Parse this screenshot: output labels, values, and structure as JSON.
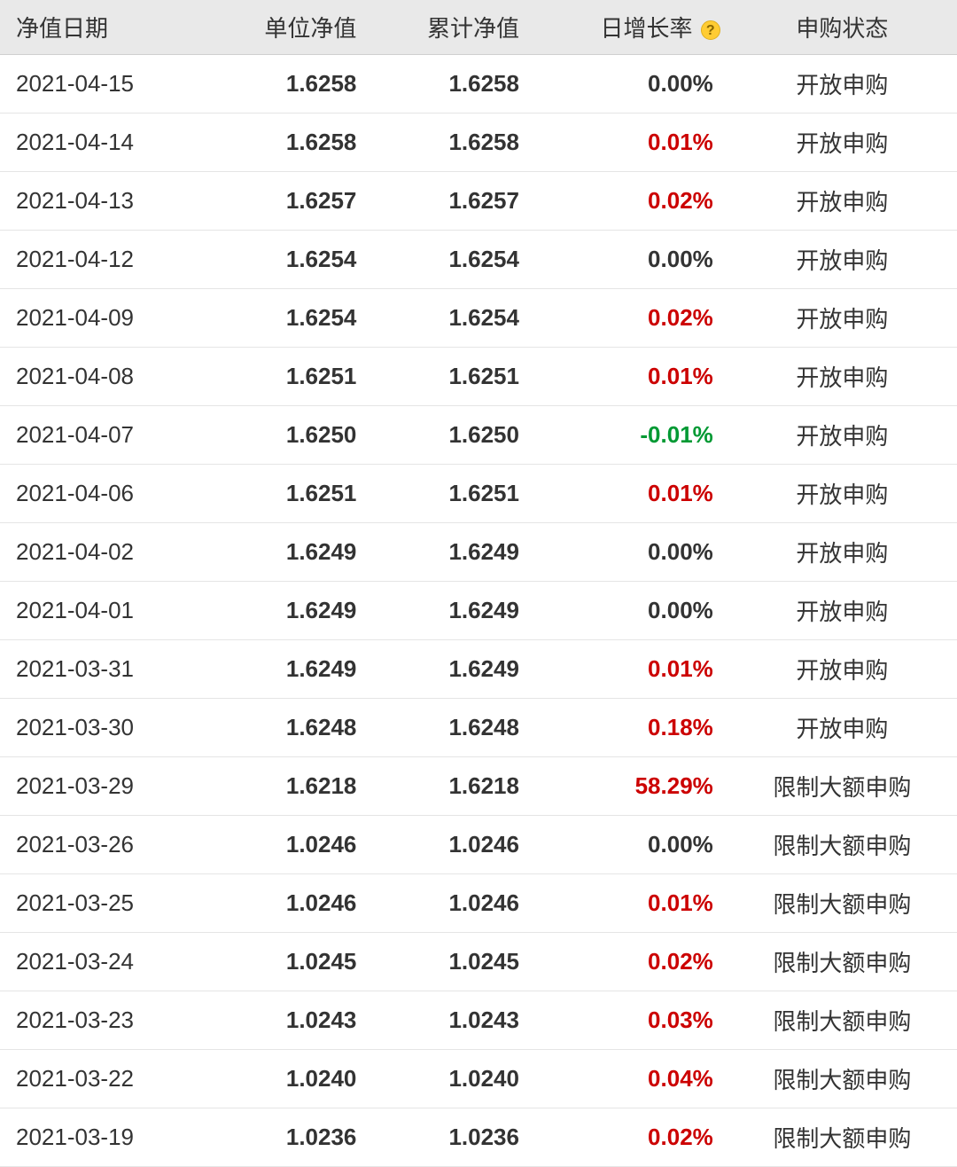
{
  "table": {
    "columns": {
      "date": "净值日期",
      "unit": "单位净值",
      "cum": "累计净值",
      "rate": "日增长率",
      "status": "申购状态"
    },
    "help_icon_label": "?",
    "rows": [
      {
        "date": "2021-04-15",
        "unit": "1.6258",
        "cum": "1.6258",
        "rate": "0.00%",
        "rate_dir": "zero",
        "status": "开放申购"
      },
      {
        "date": "2021-04-14",
        "unit": "1.6258",
        "cum": "1.6258",
        "rate": "0.01%",
        "rate_dir": "pos",
        "status": "开放申购"
      },
      {
        "date": "2021-04-13",
        "unit": "1.6257",
        "cum": "1.6257",
        "rate": "0.02%",
        "rate_dir": "pos",
        "status": "开放申购"
      },
      {
        "date": "2021-04-12",
        "unit": "1.6254",
        "cum": "1.6254",
        "rate": "0.00%",
        "rate_dir": "zero",
        "status": "开放申购"
      },
      {
        "date": "2021-04-09",
        "unit": "1.6254",
        "cum": "1.6254",
        "rate": "0.02%",
        "rate_dir": "pos",
        "status": "开放申购"
      },
      {
        "date": "2021-04-08",
        "unit": "1.6251",
        "cum": "1.6251",
        "rate": "0.01%",
        "rate_dir": "pos",
        "status": "开放申购"
      },
      {
        "date": "2021-04-07",
        "unit": "1.6250",
        "cum": "1.6250",
        "rate": "-0.01%",
        "rate_dir": "neg",
        "status": "开放申购"
      },
      {
        "date": "2021-04-06",
        "unit": "1.6251",
        "cum": "1.6251",
        "rate": "0.01%",
        "rate_dir": "pos",
        "status": "开放申购"
      },
      {
        "date": "2021-04-02",
        "unit": "1.6249",
        "cum": "1.6249",
        "rate": "0.00%",
        "rate_dir": "zero",
        "status": "开放申购"
      },
      {
        "date": "2021-04-01",
        "unit": "1.6249",
        "cum": "1.6249",
        "rate": "0.00%",
        "rate_dir": "zero",
        "status": "开放申购"
      },
      {
        "date": "2021-03-31",
        "unit": "1.6249",
        "cum": "1.6249",
        "rate": "0.01%",
        "rate_dir": "pos",
        "status": "开放申购"
      },
      {
        "date": "2021-03-30",
        "unit": "1.6248",
        "cum": "1.6248",
        "rate": "0.18%",
        "rate_dir": "pos",
        "status": "开放申购"
      },
      {
        "date": "2021-03-29",
        "unit": "1.6218",
        "cum": "1.6218",
        "rate": "58.29%",
        "rate_dir": "pos",
        "status": "限制大额申购"
      },
      {
        "date": "2021-03-26",
        "unit": "1.0246",
        "cum": "1.0246",
        "rate": "0.00%",
        "rate_dir": "zero",
        "status": "限制大额申购"
      },
      {
        "date": "2021-03-25",
        "unit": "1.0246",
        "cum": "1.0246",
        "rate": "0.01%",
        "rate_dir": "pos",
        "status": "限制大额申购"
      },
      {
        "date": "2021-03-24",
        "unit": "1.0245",
        "cum": "1.0245",
        "rate": "0.02%",
        "rate_dir": "pos",
        "status": "限制大额申购"
      },
      {
        "date": "2021-03-23",
        "unit": "1.0243",
        "cum": "1.0243",
        "rate": "0.03%",
        "rate_dir": "pos",
        "status": "限制大额申购"
      },
      {
        "date": "2021-03-22",
        "unit": "1.0240",
        "cum": "1.0240",
        "rate": "0.04%",
        "rate_dir": "pos",
        "status": "限制大额申购"
      },
      {
        "date": "2021-03-19",
        "unit": "1.0236",
        "cum": "1.0236",
        "rate": "0.02%",
        "rate_dir": "pos",
        "status": "限制大额申购"
      }
    ],
    "colors": {
      "header_bg": "#e9e9e9",
      "row_border": "#e5e5e5",
      "text": "#333333",
      "positive": "#cc0000",
      "negative": "#009933",
      "help_bg": "#ffcc33"
    }
  }
}
